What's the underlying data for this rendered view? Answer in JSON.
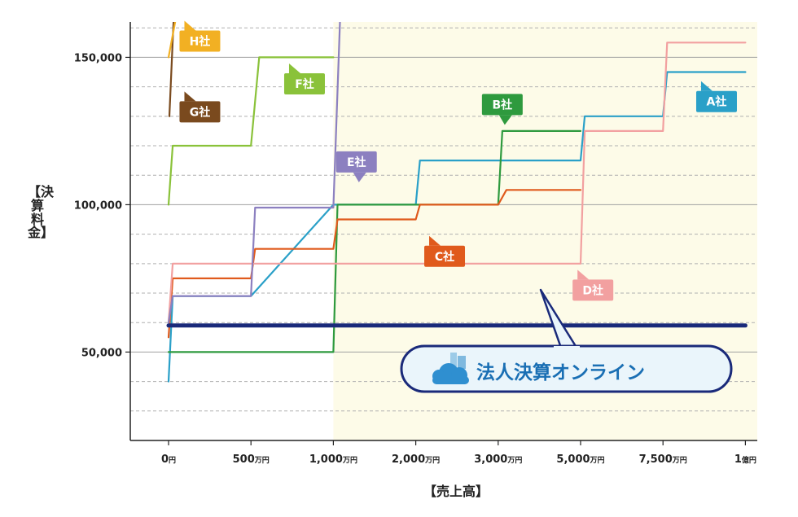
{
  "chart_data": {
    "type": "line",
    "xlabel": "【売上高】",
    "ylabel": "【決算料金】",
    "categories": [
      "0円",
      "500万円",
      "1,000万円",
      "2,000万円",
      "3,000万円",
      "5,000万円",
      "7,500万円",
      "1億円"
    ],
    "x_ticks": [
      {
        "num": "0",
        "unit": "円"
      },
      {
        "num": "500",
        "unit": "万円"
      },
      {
        "num": "1,000",
        "unit": "万円"
      },
      {
        "num": "2,000",
        "unit": "万円"
      },
      {
        "num": "3,000",
        "unit": "万円"
      },
      {
        "num": "5,000",
        "unit": "万円"
      },
      {
        "num": "7,500",
        "unit": "万円"
      },
      {
        "num": "1",
        "unit": "億円"
      }
    ],
    "y_ticks": [
      "50,000",
      "100,000",
      "150,000"
    ],
    "y_tick_values": [
      50000,
      100000,
      150000
    ],
    "ylim": [
      20000,
      162000
    ],
    "grid": "horizontal dashed every 10,000; solid at 50,000 / 100,000 / 150,000",
    "highlight_region": {
      "from_category": "1,000万円",
      "to_category": "1億円",
      "color": "#fdfbe8"
    },
    "series": [
      {
        "name": "A社",
        "color": "#2aa0c8",
        "points": [
          [
            0,
            40000
          ],
          [
            0.05,
            69000
          ],
          [
            1,
            69000
          ],
          [
            2,
            100000
          ],
          [
            3,
            100000
          ],
          [
            3.05,
            115000
          ],
          [
            5,
            115000
          ],
          [
            5.05,
            130000
          ],
          [
            6,
            130000
          ],
          [
            6.05,
            145000
          ],
          [
            7,
            145000
          ]
        ]
      },
      {
        "name": "B社",
        "color": "#2e9a3e",
        "points": [
          [
            0,
            50000
          ],
          [
            0.05,
            50000
          ],
          [
            2,
            50000
          ],
          [
            2.05,
            100000
          ],
          [
            4,
            100000
          ],
          [
            4.05,
            125000
          ],
          [
            5,
            125000
          ]
        ]
      },
      {
        "name": "C社",
        "color": "#e05a1c",
        "points": [
          [
            0,
            55000
          ],
          [
            0.05,
            75000
          ],
          [
            1,
            75000
          ],
          [
            1.05,
            85000
          ],
          [
            2,
            85000
          ],
          [
            2.05,
            95000
          ],
          [
            3,
            95000
          ],
          [
            3.05,
            100000
          ],
          [
            4,
            100000
          ],
          [
            4.1,
            105000
          ],
          [
            5,
            105000
          ]
        ]
      },
      {
        "name": "D社",
        "color": "#f2a0a0",
        "points": [
          [
            0,
            60000
          ],
          [
            0.05,
            80000
          ],
          [
            5,
            80000
          ],
          [
            5.05,
            125000
          ],
          [
            6,
            125000
          ],
          [
            6.05,
            155000
          ],
          [
            7,
            155000
          ]
        ]
      },
      {
        "name": "E社",
        "color": "#8c80c0",
        "points": [
          [
            0,
            60000
          ],
          [
            0.05,
            69000
          ],
          [
            1,
            69000
          ],
          [
            1.05,
            99000
          ],
          [
            2,
            99000
          ],
          [
            2.08,
            162000
          ]
        ]
      },
      {
        "name": "F社",
        "color": "#8ac23a",
        "points": [
          [
            0,
            100000
          ],
          [
            0.05,
            120000
          ],
          [
            1,
            120000
          ],
          [
            1.1,
            150000
          ],
          [
            2,
            150000
          ]
        ]
      },
      {
        "name": "G社",
        "color": "#7a4a1e",
        "points": [
          [
            0.01,
            130000
          ],
          [
            0.06,
            162000
          ]
        ]
      },
      {
        "name": "H社",
        "color": "#f2b023",
        "points": [
          [
            0,
            150000
          ],
          [
            0.08,
            162000
          ]
        ]
      },
      {
        "name": "法人決算オンライン",
        "color": "#1a2a7a",
        "width": 5,
        "points": [
          [
            0,
            59000
          ],
          [
            7,
            59000
          ]
        ]
      }
    ],
    "labels": [
      {
        "text": "H社",
        "color": "#f2b023",
        "cx": 0.38,
        "cy": 155500,
        "tail": "up"
      },
      {
        "text": "G社",
        "color": "#7a4a1e",
        "cx": 0.38,
        "cy": 131500,
        "tail": "up"
      },
      {
        "text": "F社",
        "color": "#8ac23a",
        "cx": 1.65,
        "cy": 141000,
        "tail": "up"
      },
      {
        "text": "E社",
        "color": "#8c80c0",
        "cx": 2.28,
        "cy": 114500,
        "tail": "down"
      },
      {
        "text": "B社",
        "color": "#2e9a3e",
        "cx": 4.05,
        "cy": 134000,
        "tail": "down"
      },
      {
        "text": "A社",
        "color": "#2aa0c8",
        "cx": 6.65,
        "cy": 135000,
        "tail": "up"
      },
      {
        "text": "C社",
        "color": "#e05a1c",
        "cx": 3.35,
        "cy": 82500,
        "tail": "up"
      },
      {
        "text": "D社",
        "color": "#f2a0a0",
        "cx": 5.15,
        "cy": 71000,
        "tail": "up"
      }
    ],
    "callout": {
      "text": "法人決算オンライン",
      "bg": "#eaf5fb",
      "border": "#1a2a7a",
      "text_color": "#1a6fb4"
    }
  }
}
